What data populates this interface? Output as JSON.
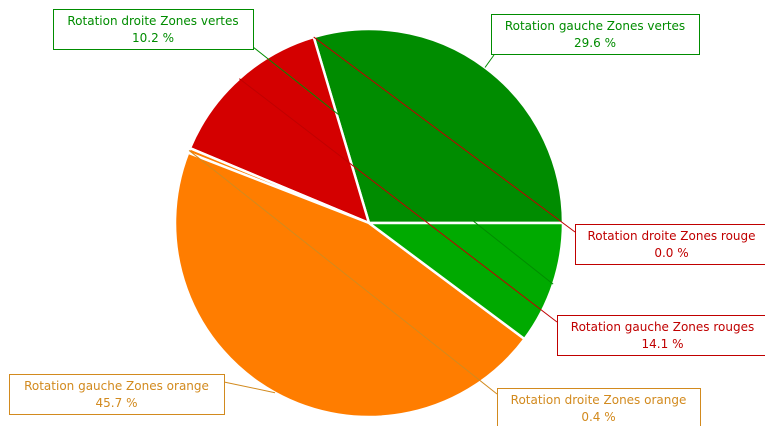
{
  "chart_data": {
    "type": "pie",
    "slices": [
      {
        "label": "Rotation gauche Zones vertes",
        "percent_label": "29.6 %",
        "value": 29.6,
        "color": "#008c00",
        "label_color": "#008c00",
        "line_color": "#008c00"
      },
      {
        "label": "Rotation droite Zones rouge",
        "percent_label": "0.0 %",
        "value": 0.0,
        "color": "#d40000",
        "label_color": "#c00000",
        "line_color": "#c00000"
      },
      {
        "label": "Rotation gauche Zones rouges",
        "percent_label": "14.1 %",
        "value": 14.1,
        "color": "#d40000",
        "label_color": "#c00000",
        "line_color": "#c00000"
      },
      {
        "label": "Rotation droite Zones orange",
        "percent_label": "0.4 %",
        "value": 0.4,
        "color": "#ff7d00",
        "label_color": "#d28a1e",
        "line_color": "#d28a1e"
      },
      {
        "label": "Rotation gauche Zones orange",
        "percent_label": "45.7 %",
        "value": 45.7,
        "color": "#ff7d00",
        "label_color": "#d28a1e",
        "line_color": "#d28a1e"
      },
      {
        "label": "Rotation droite Zones vertes",
        "percent_label": "10.2 %",
        "value": 10.2,
        "color": "#00aa00",
        "label_color": "#008c00",
        "line_color": "#008c00"
      }
    ]
  }
}
